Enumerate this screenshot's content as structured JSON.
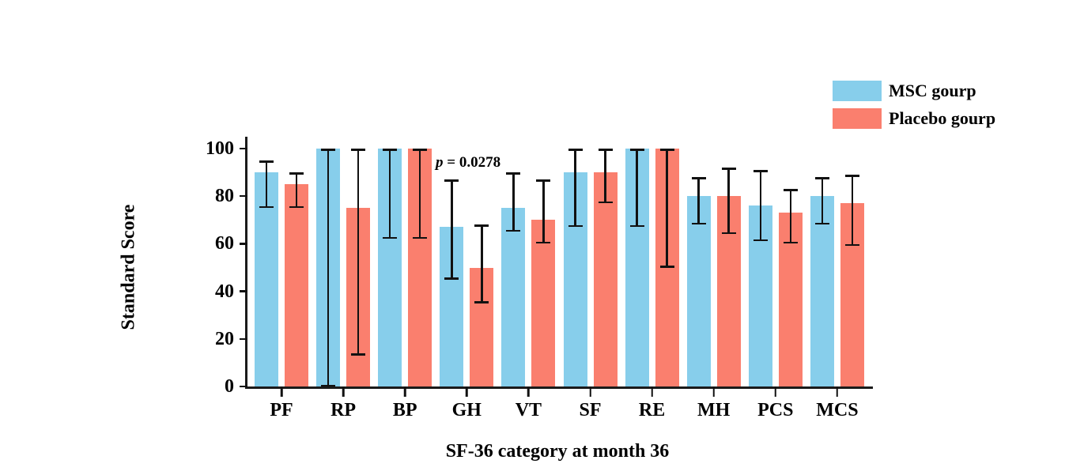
{
  "chart_data": {
    "type": "bar",
    "title": "",
    "xlabel": "SF-36 category at month 36",
    "ylabel": "Standard Score",
    "ylim": [
      0,
      100
    ],
    "yticks": [
      0,
      20,
      40,
      60,
      80,
      100
    ],
    "grid": false,
    "legend_position": "top-right",
    "axis_color": "#1a1a1a",
    "error_bar_color": "#111111",
    "categories": [
      "PF",
      "RP",
      "BP",
      "GH",
      "VT",
      "SF",
      "RE",
      "MH",
      "PCS",
      "MCS"
    ],
    "series": [
      {
        "name": "MSC gourp",
        "color": "#87CEEB",
        "values": [
          90,
          100,
          100,
          67,
          75,
          90,
          100,
          80,
          76,
          80
        ],
        "error_low": [
          75,
          0,
          62,
          45,
          65,
          67,
          67,
          68,
          61,
          68
        ],
        "error_high": [
          95,
          100,
          100,
          87,
          90,
          100,
          100,
          88,
          91,
          88
        ]
      },
      {
        "name": "Placebo gourp",
        "color": "#FA7F6E",
        "values": [
          85,
          75,
          100,
          50,
          70,
          90,
          100,
          80,
          73,
          77
        ],
        "error_low": [
          75,
          13,
          62,
          35,
          60,
          77,
          50,
          64,
          60,
          59
        ],
        "error_high": [
          90,
          100,
          100,
          68,
          87,
          100,
          100,
          92,
          83,
          89
        ]
      }
    ],
    "annotation": {
      "prefix": "p",
      "rest": " = 0.0278",
      "category": "GH"
    }
  }
}
